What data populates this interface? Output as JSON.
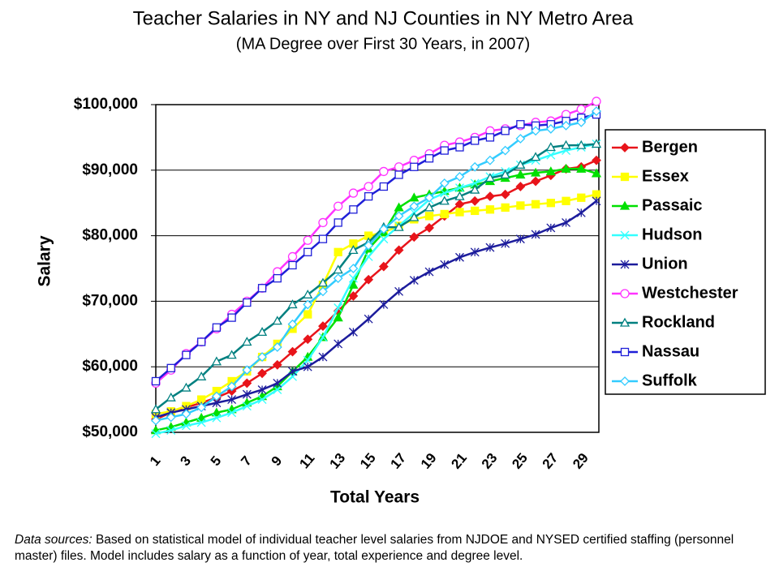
{
  "chart_data": {
    "type": "line",
    "title": "Teacher Salaries in NY and NJ Counties in NY Metro Area",
    "subtitle": "(MA Degree over First 30 Years, in 2007)",
    "x_label": "Total Years",
    "y_label": "Salary",
    "categories": [
      1,
      null,
      3,
      null,
      5,
      null,
      7,
      null,
      9,
      null,
      11,
      null,
      13,
      null,
      15,
      null,
      17,
      null,
      19,
      null,
      21,
      null,
      23,
      null,
      25,
      null,
      27,
      null,
      29,
      null
    ],
    "ylim": [
      50000,
      100000
    ],
    "yticks": [
      {
        "value": 50000,
        "label": "$50,000"
      },
      {
        "value": 60000,
        "label": "$60,000"
      },
      {
        "value": 70000,
        "label": "$70,000"
      },
      {
        "value": 80000,
        "label": "$80,000"
      },
      {
        "value": 90000,
        "label": "$90,000"
      },
      {
        "value": 100000,
        "label": "$100,000"
      }
    ],
    "grid": true,
    "legend": "right",
    "series": [
      {
        "name": "Bergen",
        "color": "#e8141a",
        "marker": "diamond",
        "values": [
          52000,
          53000,
          53800,
          54500,
          55300,
          56300,
          57500,
          59000,
          60300,
          62300,
          64200,
          66200,
          68500,
          70800,
          73300,
          75300,
          77800,
          79800,
          81200,
          83000,
          84800,
          85300,
          86000,
          86300,
          87500,
          88300,
          89200,
          90200,
          90500,
          91500
        ]
      },
      {
        "name": "Essex",
        "color": "#ffff00",
        "marker": "square",
        "values": [
          52800,
          53200,
          54000,
          55000,
          56300,
          57800,
          59300,
          61500,
          63500,
          65800,
          68000,
          72500,
          77500,
          78800,
          80000,
          80500,
          81500,
          82500,
          83000,
          83300,
          83600,
          83800,
          84000,
          84300,
          84600,
          84800,
          85000,
          85300,
          85800,
          86300
        ]
      },
      {
        "name": "Passaic",
        "color": "#00e000",
        "marker": "triangle",
        "values": [
          50300,
          50800,
          51500,
          52200,
          53000,
          53500,
          54500,
          55500,
          57000,
          59300,
          61500,
          64500,
          67500,
          72500,
          78000,
          80500,
          84300,
          85800,
          86300,
          86800,
          87300,
          87800,
          88300,
          88800,
          89300,
          89600,
          89800,
          90200,
          90200,
          89500
        ]
      },
      {
        "name": "Hudson",
        "color": "#33ffff",
        "marker": "x",
        "values": [
          49800,
          50300,
          51000,
          51500,
          52200,
          53000,
          54000,
          55000,
          56500,
          58500,
          61000,
          64500,
          69000,
          73500,
          76800,
          79500,
          81500,
          83500,
          85500,
          86500,
          87300,
          88000,
          89000,
          89800,
          90800,
          91500,
          92300,
          93000,
          93500,
          94000
        ]
      },
      {
        "name": "Union",
        "color": "#1c1c9c",
        "marker": "star",
        "values": [
          52300,
          53000,
          53500,
          54000,
          54500,
          55000,
          55800,
          56500,
          57500,
          59300,
          60000,
          61500,
          63500,
          65300,
          67300,
          69500,
          71500,
          73200,
          74500,
          75600,
          76700,
          77500,
          78200,
          78800,
          79500,
          80200,
          81200,
          82000,
          83500,
          85300
        ]
      },
      {
        "name": "Westchester",
        "color": "#ff33ff",
        "marker": "circle-open",
        "values": [
          57500,
          59500,
          62000,
          63800,
          65800,
          68000,
          70000,
          72000,
          74500,
          76800,
          79300,
          82000,
          84500,
          86500,
          87500,
          89800,
          90500,
          91500,
          92500,
          93800,
          94300,
          95000,
          96000,
          96300,
          96800,
          97300,
          97500,
          98500,
          99300,
          100500
        ]
      },
      {
        "name": "Rockland",
        "color": "#008080",
        "marker": "triangle-open",
        "values": [
          53500,
          55300,
          56800,
          58500,
          60800,
          61800,
          63800,
          65300,
          67000,
          69500,
          71000,
          72800,
          74800,
          77800,
          79000,
          81300,
          81300,
          82800,
          84300,
          85300,
          86000,
          87000,
          88800,
          89300,
          90800,
          92000,
          93500,
          93800,
          93800,
          94000
        ]
      },
      {
        "name": "Nassau",
        "color": "#1f1fd8",
        "marker": "square-open",
        "values": [
          57800,
          59800,
          61800,
          63800,
          66000,
          67500,
          69800,
          72000,
          73500,
          75500,
          77500,
          79500,
          82000,
          84000,
          86000,
          87500,
          89300,
          90500,
          91800,
          93000,
          93500,
          94500,
          95000,
          96000,
          97000,
          96800,
          97000,
          97500,
          98000,
          98500
        ]
      },
      {
        "name": "Suffolk",
        "color": "#33ccff",
        "marker": "diamond-open",
        "values": [
          51800,
          52300,
          52800,
          53800,
          55500,
          57000,
          59500,
          61500,
          63000,
          66500,
          69500,
          71500,
          73500,
          75000,
          78500,
          81000,
          83000,
          84500,
          85800,
          88000,
          89000,
          90500,
          91500,
          93000,
          94800,
          96000,
          96300,
          96800,
          97300,
          99000
        ]
      }
    ]
  },
  "footnote": {
    "label": "Data sources:",
    "text": " Based on statistical model of individual teacher level salaries from NJDOE and NYSED certified staffing (personnel master) files. Model includes salary as a function of year, total experience and degree level."
  }
}
